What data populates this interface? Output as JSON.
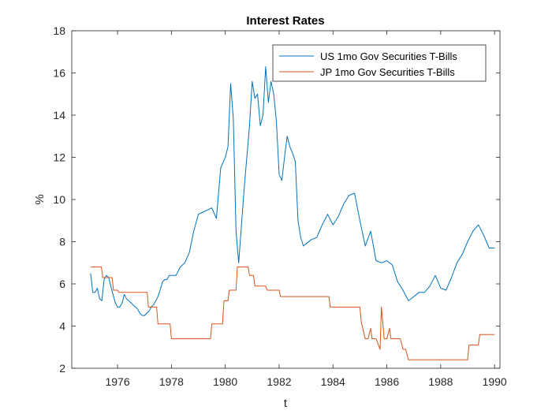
{
  "chart_data": {
    "type": "line",
    "title": "Interest Rates",
    "xlabel": "t",
    "ylabel": "%",
    "xlim": [
      1974.3,
      1990.2
    ],
    "ylim": [
      2,
      18
    ],
    "xticks": [
      1976,
      1978,
      1980,
      1982,
      1984,
      1986,
      1988,
      1990
    ],
    "yticks": [
      2,
      4,
      6,
      8,
      10,
      12,
      14,
      16,
      18
    ],
    "grid": false,
    "legend_position": "top-right",
    "series": [
      {
        "name": "US 1mo Gov Securities T-Bills",
        "color": "#0072BD",
        "x": [
          1975.0,
          1975.08,
          1975.17,
          1975.25,
          1975.33,
          1975.42,
          1975.5,
          1975.58,
          1975.67,
          1975.75,
          1975.83,
          1975.92,
          1976.0,
          1976.08,
          1976.17,
          1976.25,
          1976.33,
          1976.42,
          1976.5,
          1976.58,
          1976.67,
          1976.75,
          1976.83,
          1976.92,
          1977.0,
          1977.08,
          1977.17,
          1977.25,
          1977.33,
          1977.42,
          1977.5,
          1977.58,
          1977.67,
          1977.75,
          1977.83,
          1977.92,
          1978.0,
          1978.17,
          1978.33,
          1978.5,
          1978.67,
          1978.83,
          1979.0,
          1979.17,
          1979.33,
          1979.5,
          1979.67,
          1979.83,
          1980.0,
          1980.1,
          1980.2,
          1980.3,
          1980.4,
          1980.5,
          1980.6,
          1980.7,
          1980.8,
          1980.9,
          1981.0,
          1981.1,
          1981.2,
          1981.3,
          1981.4,
          1981.5,
          1981.6,
          1981.7,
          1981.8,
          1981.9,
          1982.0,
          1982.1,
          1982.2,
          1982.3,
          1982.4,
          1982.5,
          1982.6,
          1982.7,
          1982.8,
          1982.9,
          1983.0,
          1983.2,
          1983.4,
          1983.6,
          1983.8,
          1984.0,
          1984.2,
          1984.4,
          1984.6,
          1984.8,
          1985.0,
          1985.2,
          1985.4,
          1985.6,
          1985.8,
          1986.0,
          1986.2,
          1986.4,
          1986.6,
          1986.8,
          1987.0,
          1987.2,
          1987.4,
          1987.6,
          1987.8,
          1988.0,
          1988.2,
          1988.4,
          1988.6,
          1988.8,
          1989.0,
          1989.2,
          1989.4,
          1989.6,
          1989.8,
          1990.0
        ],
        "y": [
          6.5,
          5.6,
          5.6,
          5.8,
          5.3,
          5.2,
          6.2,
          6.4,
          6.3,
          5.9,
          5.5,
          5.1,
          4.9,
          4.9,
          5.1,
          5.5,
          5.3,
          5.2,
          5.1,
          5.0,
          4.9,
          4.8,
          4.6,
          4.5,
          4.5,
          4.6,
          4.7,
          4.9,
          5.0,
          5.2,
          5.4,
          5.7,
          6.1,
          6.2,
          6.2,
          6.4,
          6.4,
          6.4,
          6.8,
          7.0,
          7.5,
          8.5,
          9.3,
          9.4,
          9.5,
          9.6,
          9.1,
          11.5,
          12.0,
          12.5,
          15.5,
          13.8,
          8.5,
          7.0,
          8.8,
          10.5,
          12.0,
          13.5,
          15.6,
          14.8,
          15.0,
          13.5,
          14.0,
          16.3,
          14.6,
          15.6,
          15.0,
          13.7,
          11.2,
          10.9,
          12.0,
          13.0,
          12.5,
          12.2,
          11.8,
          9.0,
          8.2,
          7.8,
          7.9,
          8.1,
          8.2,
          8.8,
          9.3,
          8.8,
          9.2,
          9.8,
          10.2,
          10.3,
          9.0,
          7.8,
          8.5,
          7.1,
          7.0,
          7.1,
          6.9,
          6.1,
          5.7,
          5.2,
          5.4,
          5.6,
          5.6,
          5.9,
          6.4,
          5.8,
          5.7,
          6.3,
          7.0,
          7.4,
          8.0,
          8.5,
          8.8,
          8.3,
          7.7,
          7.7
        ]
      },
      {
        "name": "JP 1mo Gov Securities T-Bills",
        "color": "#D95319",
        "x": [
          1975.0,
          1975.4,
          1975.45,
          1975.8,
          1975.85,
          1976.0,
          1976.05,
          1977.1,
          1977.15,
          1977.45,
          1977.5,
          1977.95,
          1978.0,
          1979.0,
          1979.05,
          1979.45,
          1979.5,
          1979.9,
          1979.95,
          1980.1,
          1980.15,
          1980.4,
          1980.45,
          1980.85,
          1980.9,
          1981.05,
          1981.1,
          1981.5,
          1981.55,
          1982.0,
          1982.05,
          1983.85,
          1983.9,
          1985.0,
          1985.05,
          1985.2,
          1985.3,
          1985.4,
          1985.45,
          1985.55,
          1985.6,
          1985.75,
          1985.8,
          1985.9,
          1986.0,
          1986.1,
          1986.15,
          1986.3,
          1986.4,
          1986.5,
          1986.6,
          1986.7,
          1986.8,
          1987.05,
          1987.1,
          1989.0,
          1989.05,
          1989.4,
          1989.45,
          1989.8,
          1989.85,
          1990.0
        ],
        "y": [
          6.8,
          6.8,
          6.3,
          6.3,
          5.7,
          5.7,
          5.6,
          5.6,
          4.9,
          4.9,
          4.1,
          4.1,
          3.4,
          3.4,
          3.4,
          3.4,
          4.1,
          4.1,
          5.2,
          5.2,
          5.7,
          5.7,
          6.8,
          6.8,
          6.4,
          6.4,
          5.9,
          5.9,
          5.7,
          5.7,
          5.4,
          5.4,
          4.9,
          4.9,
          4.2,
          3.4,
          3.4,
          3.9,
          3.4,
          3.4,
          3.4,
          2.9,
          4.9,
          3.4,
          3.4,
          3.9,
          3.4,
          3.4,
          3.4,
          3.4,
          2.9,
          2.9,
          2.4,
          2.4,
          2.4,
          2.4,
          3.1,
          3.1,
          3.6,
          3.6,
          3.6,
          3.6
        ]
      }
    ]
  }
}
